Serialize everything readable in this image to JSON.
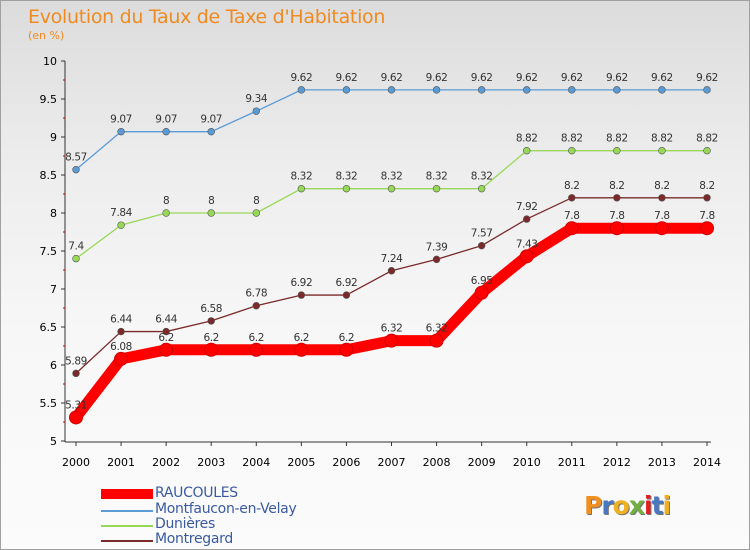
{
  "title": "Evolution du Taux de Taxe d'Habitation",
  "subtitle": "(en %)",
  "logo": {
    "letters": [
      "P",
      "r",
      "o",
      "x",
      "i",
      "t",
      "i"
    ],
    "colors": [
      "#f09020",
      "#4a78c0",
      "#f0b020",
      "#70b040",
      "#e02020",
      "#4a78c0",
      "#f0b020"
    ]
  },
  "chart_data": {
    "type": "line",
    "x": [
      "2000",
      "2001",
      "2002",
      "2003",
      "2004",
      "2005",
      "2006",
      "2007",
      "2008",
      "2009",
      "2010",
      "2011",
      "2012",
      "2013",
      "2014"
    ],
    "ylim": [
      5,
      10
    ],
    "yticks": [
      "5",
      "5.5",
      "6",
      "6.5",
      "7",
      "7.5",
      "8",
      "8.5",
      "9",
      "9.5",
      "10"
    ],
    "grid": false,
    "series": [
      {
        "name": "RAUCOULES",
        "color": "#ff0000",
        "values": [
          5.31,
          6.08,
          6.2,
          6.2,
          6.2,
          6.2,
          6.2,
          6.32,
          6.32,
          6.95,
          7.43,
          7.8,
          7.8,
          7.8,
          7.8
        ],
        "labels": [
          "5.31",
          "6.08",
          "6.2",
          "6.2",
          "6.2",
          "6.2",
          "6.2",
          "6.32",
          "6.32",
          "6.95",
          "7.43",
          "7.8",
          "7.8",
          "7.8",
          "7.8"
        ]
      },
      {
        "name": "Montfaucon-en-Velay",
        "color": "#5b9bd5",
        "values": [
          8.57,
          9.07,
          9.07,
          9.07,
          9.34,
          9.62,
          9.62,
          9.62,
          9.62,
          9.62,
          9.62,
          9.62,
          9.62,
          9.62,
          9.62
        ],
        "labels": [
          "8.57",
          "9.07",
          "9.07",
          "9.07",
          "9.34",
          "9.62",
          "9.62",
          "9.62",
          "9.62",
          "9.62",
          "9.62",
          "9.62",
          "9.62",
          "9.62",
          "9.62"
        ]
      },
      {
        "name": "Dunières",
        "color": "#98d858",
        "values": [
          7.4,
          7.84,
          8,
          8,
          8,
          8.32,
          8.32,
          8.32,
          8.32,
          8.32,
          8.82,
          8.82,
          8.82,
          8.82,
          8.82
        ],
        "labels": [
          "7.4",
          "7.84",
          "8",
          "8",
          "8",
          "8.32",
          "8.32",
          "8.32",
          "8.32",
          "8.32",
          "8.82",
          "8.82",
          "8.82",
          "8.82",
          "8.82"
        ]
      },
      {
        "name": "Montregard",
        "color": "#7a2a2a",
        "values": [
          5.89,
          6.44,
          6.44,
          6.58,
          6.78,
          6.92,
          6.92,
          7.24,
          7.39,
          7.57,
          7.92,
          8.2,
          8.2,
          8.2,
          8.2
        ],
        "labels": [
          "5.89",
          "6.44",
          "6.44",
          "6.58",
          "6.78",
          "6.92",
          "6.92",
          "7.24",
          "7.39",
          "7.57",
          "7.92",
          "8.2",
          "8.2",
          "8.2",
          "8.2"
        ]
      }
    ]
  }
}
